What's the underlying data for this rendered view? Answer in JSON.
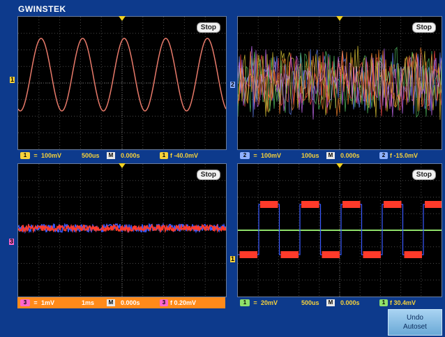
{
  "brand": "GWINSTEK",
  "panels": [
    {
      "id": "p1",
      "badge": "Stop",
      "channel_label": "1",
      "status": {
        "channel": "1",
        "coupling": "=",
        "volts_div": "100mV",
        "time_div": "500us",
        "mode": "M",
        "delay": "0.000s",
        "trig_channel": "1",
        "trigger": "f -40.0mV"
      },
      "colors": {
        "trace": "#e87a6a",
        "status_bg": "#0d3a8c",
        "text": "#f7d23a",
        "chip": "#f7d23a"
      }
    },
    {
      "id": "p2",
      "badge": "Stop",
      "channel_label": "2",
      "status": {
        "channel": "2",
        "coupling": "=",
        "volts_div": "100mV",
        "time_div": "100us",
        "mode": "M",
        "delay": "0.000s",
        "trig_channel": "2",
        "trigger": "f -15.0mV"
      },
      "colors": {
        "trace": "#6688ff",
        "status_bg": "#0d3a8c",
        "text": "#f7d23a",
        "chip": "#8fb0ff"
      }
    },
    {
      "id": "p3",
      "badge": "Stop",
      "channel_label": "3",
      "status": {
        "channel": "3",
        "coupling": "=",
        "volts_div": "1mV",
        "time_div": "1ms",
        "mode": "M",
        "delay": "0.000s",
        "trig_channel": "3",
        "trigger": "f 0.20mV"
      },
      "colors": {
        "trace": "#ff3a2a",
        "status_bg": "#ff8a1a",
        "text": "#ffffff",
        "chip": "#ff66cc"
      }
    },
    {
      "id": "p4",
      "badge": "Stop",
      "channel_label": "1",
      "status": {
        "channel": "1",
        "coupling": "=",
        "volts_div": "20mV",
        "time_div": "500us",
        "mode": "M",
        "delay": "0.000s",
        "trig_channel": "1",
        "trigger": "f 30.4mV"
      },
      "colors": {
        "trace": "#ff3a2a",
        "status_bg": "#0d3a8c",
        "text": "#f7d23a",
        "chip": "#8fe06a"
      }
    }
  ],
  "undo_autoset": {
    "line1": "Undo",
    "line2": "Autoset"
  }
}
